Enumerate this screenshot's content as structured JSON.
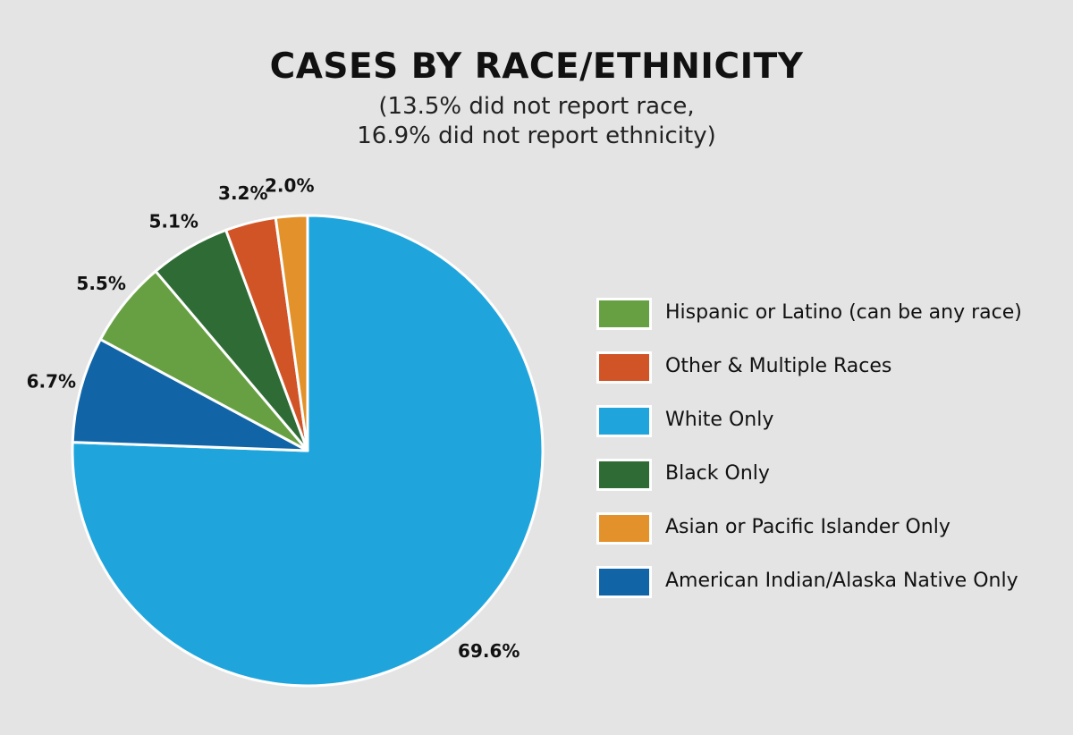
{
  "chart_data": {
    "type": "pie",
    "title": "CASES BY RACE/ETHNICITY",
    "subtitle_lines": [
      "(13.5% did not report race,",
      "16.9% did not report ethnicity)"
    ],
    "slices": [
      {
        "name": "White Only",
        "value": 69.6,
        "label": "69.6%",
        "color": "#1fa5dc"
      },
      {
        "name": "American Indian/Alaska Native Only",
        "value": 6.7,
        "label": "6.7%",
        "color": "#1165a6"
      },
      {
        "name": "Hispanic or Latino (can be any race)",
        "value": 5.5,
        "label": "5.5%",
        "color": "#67a042"
      },
      {
        "name": "Black Only",
        "value": 5.1,
        "label": "5.1%",
        "color": "#2f6b35"
      },
      {
        "name": "Other & Multiple Races",
        "value": 3.2,
        "label": "3.2%",
        "color": "#d15427"
      },
      {
        "name": "Asian or Pacific Islander Only",
        "value": 2.0,
        "label": "2.0%",
        "color": "#e3922b"
      }
    ],
    "legend_placement": "right",
    "legend": [
      {
        "label": "Hispanic or Latino (can be any race)",
        "color": "#67a042"
      },
      {
        "label": "Other & Multiple Races",
        "color": "#d15427"
      },
      {
        "label": "White Only",
        "color": "#1fa5dc"
      },
      {
        "label": "Black Only",
        "color": "#2f6b35"
      },
      {
        "label": "Asian or Pacific Islander Only",
        "color": "#e3922b"
      },
      {
        "label": "American Indian/Alaska Native Only",
        "color": "#1165a6"
      }
    ]
  }
}
